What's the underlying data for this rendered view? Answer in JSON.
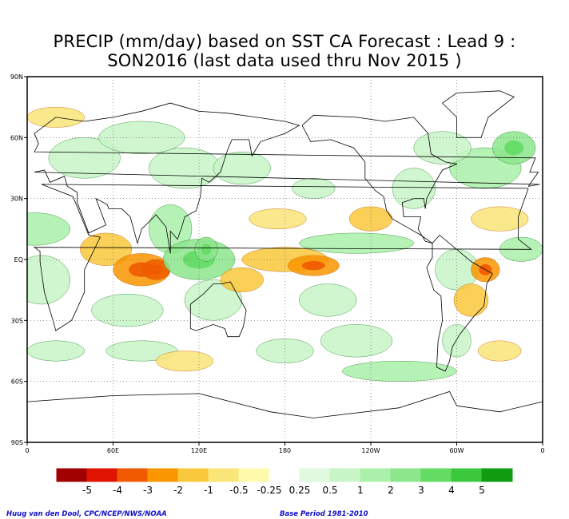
{
  "title": {
    "line1": "PRECIP (mm/day) based on SST CA Forecast : Lead 9 :",
    "line2": "SON2016 (last data used thru Nov 2015 )"
  },
  "lat_ticks": [
    "90N",
    "60N",
    "30N",
    "EQ",
    "30S",
    "60S",
    "90S"
  ],
  "lon_ticks": [
    "0",
    "60E",
    "120E",
    "180",
    "120W",
    "60W",
    "0"
  ],
  "legend": {
    "labels": [
      "-5",
      "-4",
      "-3",
      "-2",
      "-1",
      "-0.5",
      "-0.25",
      "0.25",
      "0.5",
      "1",
      "2",
      "3",
      "4",
      "5"
    ],
    "colors": [
      "#a00000",
      "#e01400",
      "#f05a00",
      "#fa9600",
      "#fac83c",
      "#fae678",
      "#fffaaa",
      "#ffffff",
      "#e0fae0",
      "#c8f5c8",
      "#aaf0aa",
      "#8ce68c",
      "#64dc64",
      "#3cc83c",
      "#109c10"
    ]
  },
  "footer": {
    "credit": "Huug van den Dool, CPC/NCEP/NWS/NOAA",
    "base_period": "Base Period 1981-2010"
  },
  "map": {
    "projection": "equirectangular",
    "lon_range": [
      0,
      360
    ],
    "lat_range": [
      -90,
      90
    ],
    "anomaly_features": [
      {
        "region": "Arabian Sea / W Indian Ocean",
        "lon": 60,
        "lat": 5,
        "value": -1
      },
      {
        "region": "Central Indian Ocean S",
        "lon": 75,
        "lat": -5,
        "value": -2
      },
      {
        "region": "Maritime Continent",
        "lon": 120,
        "lat": 0,
        "value": 2
      },
      {
        "region": "Central Pacific EQ",
        "lon": 180,
        "lat": 0,
        "value": -1
      },
      {
        "region": "East Pacific ITCZ",
        "lon": 230,
        "lat": 8,
        "value": 1
      },
      {
        "region": "NE Brazil",
        "lon": 320,
        "lat": -5,
        "value": -2
      },
      {
        "region": "North Atlantic",
        "lon": 320,
        "lat": 45,
        "value": 1
      },
      {
        "region": "Southern Ocean",
        "lon": 260,
        "lat": -55,
        "value": 1
      }
    ]
  }
}
